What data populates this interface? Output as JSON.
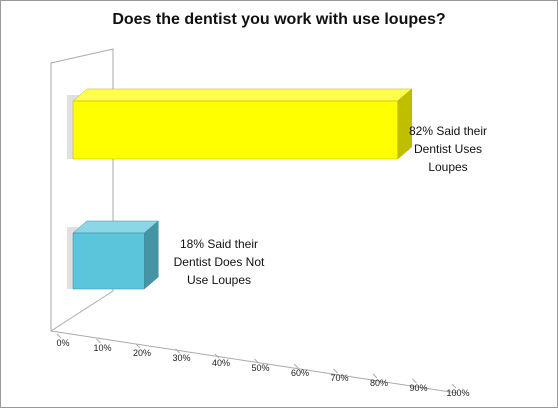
{
  "chart_data": {
    "type": "bar3d-horizontal",
    "title": "Does the dentist you work with use loupes?",
    "categories": [
      null,
      null
    ],
    "values": [
      82,
      18
    ],
    "value_labels": [
      "82% Said their Dentist Uses Loupes",
      "18% Said their Dentist Does Not Use Loupes"
    ],
    "colors": [
      "#ffff00",
      "#5bc5dc"
    ],
    "xlim": [
      0,
      100
    ],
    "xticks": [
      {
        "value": 0,
        "label": "0%"
      },
      {
        "value": 10,
        "label": "10%"
      },
      {
        "value": 20,
        "label": "20%"
      },
      {
        "value": 30,
        "label": "30%"
      },
      {
        "value": 40,
        "label": "40%"
      },
      {
        "value": 50,
        "label": "50%"
      },
      {
        "value": 60,
        "label": "60%"
      },
      {
        "value": 70,
        "label": "70%"
      },
      {
        "value": 80,
        "label": "80%"
      },
      {
        "value": 90,
        "label": "90%"
      },
      {
        "value": 100,
        "label": "100%"
      }
    ]
  }
}
